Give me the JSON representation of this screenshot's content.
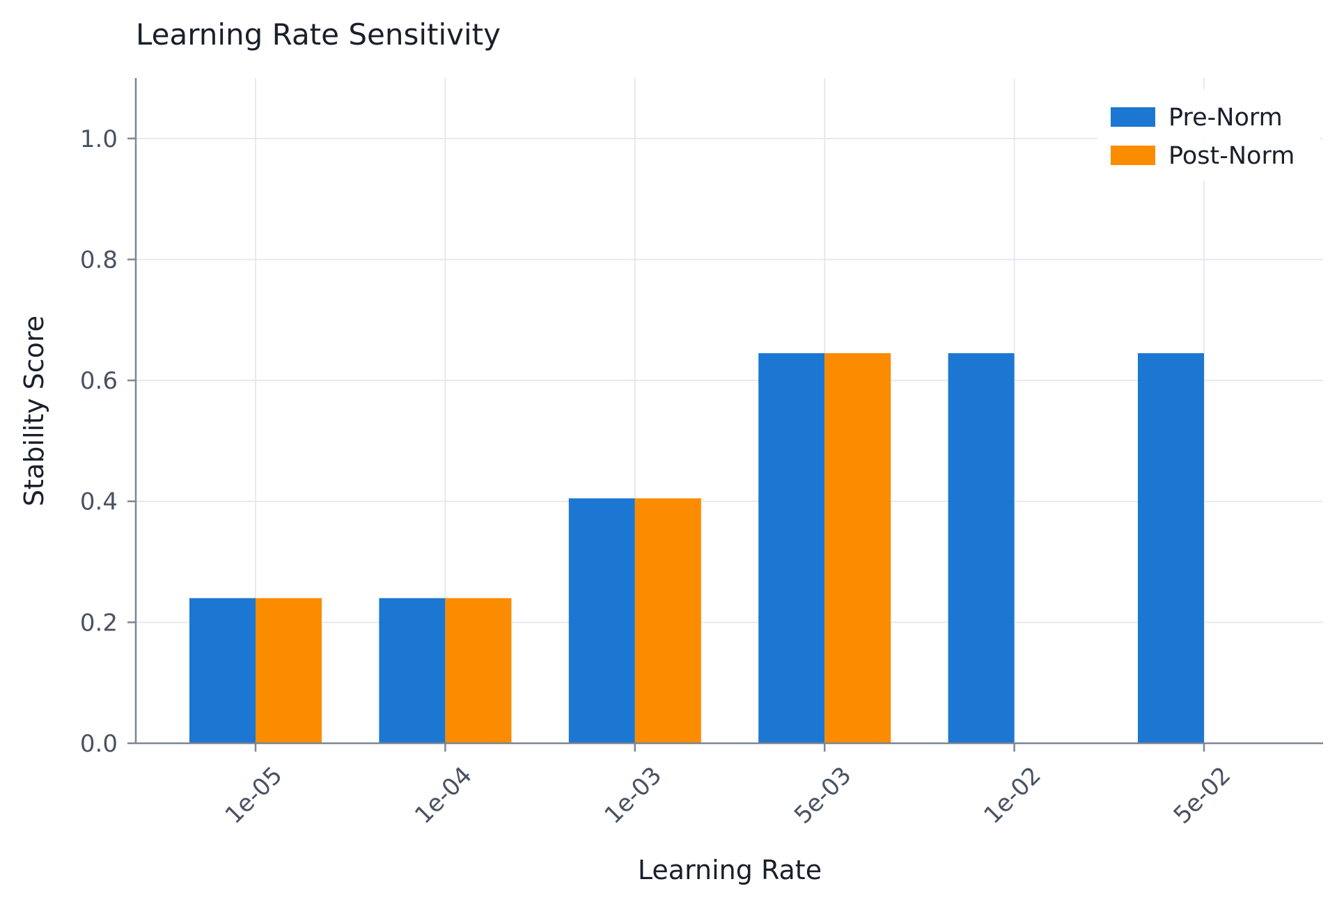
{
  "chart_data": {
    "type": "bar",
    "title": "Learning Rate Sensitivity",
    "xlabel": "Learning Rate",
    "ylabel": "Stability Score",
    "categories": [
      "1e-05",
      "1e-04",
      "1e-03",
      "5e-03",
      "1e-02",
      "5e-02"
    ],
    "series": [
      {
        "name": "Pre-Norm",
        "color": "#1b77d2",
        "values": [
          0.24,
          0.24,
          0.405,
          0.645,
          0.645,
          0.645
        ]
      },
      {
        "name": "Post-Norm",
        "color": "#fb8c00",
        "values": [
          0.24,
          0.24,
          0.405,
          0.645,
          0.0,
          0.0
        ]
      }
    ],
    "ylim": [
      0,
      1.1
    ],
    "yticks": [
      "0.0",
      "0.2",
      "0.4",
      "0.6",
      "0.8",
      "1.0"
    ],
    "grid": true,
    "legend_position": "top-right"
  }
}
